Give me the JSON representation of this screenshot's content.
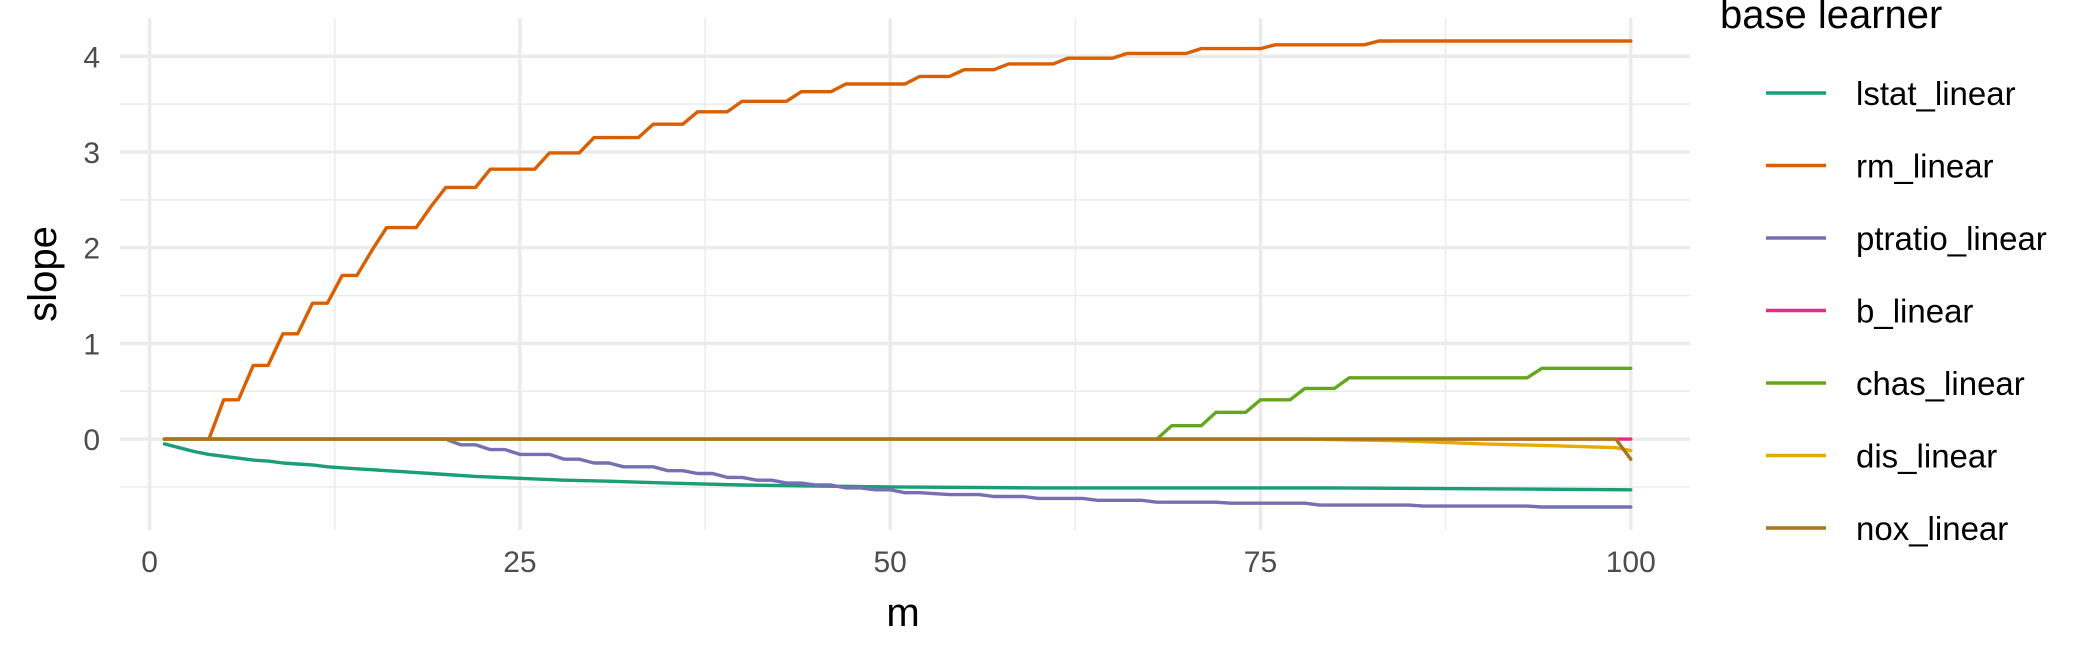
{
  "chart_data": {
    "type": "line",
    "xlabel": "m",
    "ylabel": "slope",
    "xlim": [
      -2,
      104
    ],
    "ylim": [
      -0.95,
      4.4
    ],
    "x_ticks": [
      0,
      25,
      50,
      75,
      100
    ],
    "y_ticks": [
      0,
      1,
      2,
      3,
      4
    ],
    "x_minor_ticks": [
      12.5,
      37.5,
      62.5,
      87.5
    ],
    "y_minor_ticks": [
      -0.5,
      0.5,
      1.5,
      2.5,
      3.5
    ],
    "grid": true,
    "legend_title": "base learner",
    "legend_position": "right",
    "series": [
      {
        "name": "lstat_linear",
        "color": "#1B9E77",
        "points": [
          [
            1,
            -0.05
          ],
          [
            2,
            -0.09
          ],
          [
            3,
            -0.13
          ],
          [
            4,
            -0.16
          ],
          [
            5,
            -0.18
          ],
          [
            6,
            -0.2
          ],
          [
            7,
            -0.22
          ],
          [
            8,
            -0.23
          ],
          [
            9,
            -0.25
          ],
          [
            10,
            -0.26
          ],
          [
            11,
            -0.27
          ],
          [
            12,
            -0.29
          ],
          [
            13,
            -0.3
          ],
          [
            14,
            -0.31
          ],
          [
            15,
            -0.32
          ],
          [
            16,
            -0.33
          ],
          [
            17,
            -0.34
          ],
          [
            18,
            -0.35
          ],
          [
            19,
            -0.36
          ],
          [
            20,
            -0.37
          ],
          [
            22,
            -0.39
          ],
          [
            25,
            -0.41
          ],
          [
            28,
            -0.43
          ],
          [
            31,
            -0.44
          ],
          [
            35,
            -0.46
          ],
          [
            40,
            -0.48
          ],
          [
            45,
            -0.49
          ],
          [
            50,
            -0.5
          ],
          [
            60,
            -0.51
          ],
          [
            70,
            -0.51
          ],
          [
            80,
            -0.51
          ],
          [
            90,
            -0.52
          ],
          [
            100,
            -0.53
          ]
        ]
      },
      {
        "name": "rm_linear",
        "color": "#D95F02",
        "points": [
          [
            1,
            0
          ],
          [
            2,
            0
          ],
          [
            3,
            0
          ],
          [
            4,
            0
          ],
          [
            5,
            0.41
          ],
          [
            6,
            0.41
          ],
          [
            7,
            0.77
          ],
          [
            8,
            0.77
          ],
          [
            9,
            1.1
          ],
          [
            10,
            1.1
          ],
          [
            11,
            1.42
          ],
          [
            12,
            1.42
          ],
          [
            13,
            1.71
          ],
          [
            14,
            1.71
          ],
          [
            15,
            1.97
          ],
          [
            16,
            2.21
          ],
          [
            17,
            2.21
          ],
          [
            18,
            2.21
          ],
          [
            19,
            2.43
          ],
          [
            20,
            2.63
          ],
          [
            21,
            2.63
          ],
          [
            22,
            2.63
          ],
          [
            23,
            2.82
          ],
          [
            24,
            2.82
          ],
          [
            25,
            2.82
          ],
          [
            26,
            2.82
          ],
          [
            27,
            2.99
          ],
          [
            28,
            2.99
          ],
          [
            29,
            2.99
          ],
          [
            30,
            3.15
          ],
          [
            31,
            3.15
          ],
          [
            32,
            3.15
          ],
          [
            33,
            3.15
          ],
          [
            34,
            3.29
          ],
          [
            35,
            3.29
          ],
          [
            36,
            3.29
          ],
          [
            37,
            3.42
          ],
          [
            38,
            3.42
          ],
          [
            39,
            3.42
          ],
          [
            40,
            3.53
          ],
          [
            41,
            3.53
          ],
          [
            42,
            3.53
          ],
          [
            43,
            3.53
          ],
          [
            44,
            3.63
          ],
          [
            45,
            3.63
          ],
          [
            46,
            3.63
          ],
          [
            47,
            3.71
          ],
          [
            48,
            3.71
          ],
          [
            49,
            3.71
          ],
          [
            50,
            3.71
          ],
          [
            51,
            3.71
          ],
          [
            52,
            3.79
          ],
          [
            53,
            3.79
          ],
          [
            54,
            3.79
          ],
          [
            55,
            3.86
          ],
          [
            56,
            3.86
          ],
          [
            57,
            3.86
          ],
          [
            58,
            3.92
          ],
          [
            59,
            3.92
          ],
          [
            60,
            3.92
          ],
          [
            61,
            3.92
          ],
          [
            62,
            3.98
          ],
          [
            63,
            3.98
          ],
          [
            64,
            3.98
          ],
          [
            65,
            3.98
          ],
          [
            66,
            4.03
          ],
          [
            67,
            4.03
          ],
          [
            68,
            4.03
          ],
          [
            69,
            4.03
          ],
          [
            70,
            4.03
          ],
          [
            71,
            4.08
          ],
          [
            72,
            4.08
          ],
          [
            73,
            4.08
          ],
          [
            74,
            4.08
          ],
          [
            75,
            4.08
          ],
          [
            76,
            4.12
          ],
          [
            77,
            4.12
          ],
          [
            78,
            4.12
          ],
          [
            79,
            4.12
          ],
          [
            80,
            4.12
          ],
          [
            81,
            4.12
          ],
          [
            82,
            4.12
          ],
          [
            83,
            4.16
          ],
          [
            84,
            4.16
          ],
          [
            100,
            4.16
          ]
        ]
      },
      {
        "name": "ptratio_linear",
        "color": "#7570B3",
        "points": [
          [
            1,
            0
          ],
          [
            20,
            0
          ],
          [
            21,
            -0.06
          ],
          [
            22,
            -0.06
          ],
          [
            23,
            -0.11
          ],
          [
            24,
            -0.11
          ],
          [
            25,
            -0.16
          ],
          [
            26,
            -0.16
          ],
          [
            27,
            -0.16
          ],
          [
            28,
            -0.21
          ],
          [
            29,
            -0.21
          ],
          [
            30,
            -0.25
          ],
          [
            31,
            -0.25
          ],
          [
            32,
            -0.29
          ],
          [
            33,
            -0.29
          ],
          [
            34,
            -0.29
          ],
          [
            35,
            -0.33
          ],
          [
            36,
            -0.33
          ],
          [
            37,
            -0.36
          ],
          [
            38,
            -0.36
          ],
          [
            39,
            -0.4
          ],
          [
            40,
            -0.4
          ],
          [
            41,
            -0.43
          ],
          [
            42,
            -0.43
          ],
          [
            43,
            -0.46
          ],
          [
            44,
            -0.46
          ],
          [
            45,
            -0.48
          ],
          [
            46,
            -0.48
          ],
          [
            47,
            -0.51
          ],
          [
            48,
            -0.51
          ],
          [
            49,
            -0.53
          ],
          [
            50,
            -0.53
          ],
          [
            51,
            -0.56
          ],
          [
            52,
            -0.56
          ],
          [
            54,
            -0.58
          ],
          [
            56,
            -0.58
          ],
          [
            57,
            -0.6
          ],
          [
            59,
            -0.6
          ],
          [
            60,
            -0.62
          ],
          [
            63,
            -0.62
          ],
          [
            64,
            -0.64
          ],
          [
            67,
            -0.64
          ],
          [
            68,
            -0.66
          ],
          [
            72,
            -0.66
          ],
          [
            73,
            -0.67
          ],
          [
            78,
            -0.67
          ],
          [
            79,
            -0.69
          ],
          [
            85,
            -0.69
          ],
          [
            86,
            -0.7
          ],
          [
            93,
            -0.7
          ],
          [
            94,
            -0.71
          ],
          [
            100,
            -0.71
          ]
        ]
      },
      {
        "name": "b_linear",
        "color": "#E7298A",
        "points": [
          [
            1,
            0
          ],
          [
            100,
            0
          ]
        ]
      },
      {
        "name": "chas_linear",
        "color": "#66A61E",
        "points": [
          [
            1,
            0
          ],
          [
            68,
            0
          ],
          [
            69,
            0.14
          ],
          [
            71,
            0.14
          ],
          [
            72,
            0.28
          ],
          [
            74,
            0.28
          ],
          [
            75,
            0.41
          ],
          [
            77,
            0.41
          ],
          [
            78,
            0.53
          ],
          [
            80,
            0.53
          ],
          [
            81,
            0.64
          ],
          [
            93,
            0.64
          ],
          [
            94,
            0.74
          ],
          [
            100,
            0.74
          ]
        ]
      },
      {
        "name": "dis_linear",
        "color": "#E6AB02",
        "points": [
          [
            1,
            0
          ],
          [
            78,
            0
          ],
          [
            85,
            -0.02
          ],
          [
            90,
            -0.05
          ],
          [
            95,
            -0.07
          ],
          [
            99,
            -0.09
          ],
          [
            100,
            -0.12
          ]
        ]
      },
      {
        "name": "nox_linear",
        "color": "#A6761D",
        "points": [
          [
            1,
            0
          ],
          [
            99,
            0
          ],
          [
            100,
            -0.21
          ]
        ]
      }
    ]
  }
}
